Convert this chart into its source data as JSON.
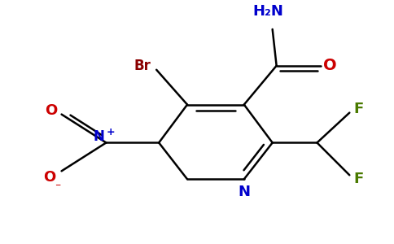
{
  "background_color": "#ffffff",
  "figsize": [
    4.84,
    3.0
  ],
  "dpi": 100,
  "lw": 1.8,
  "atom_colors": {
    "N": "#0000cc",
    "O": "#cc0000",
    "Br": "#8b0000",
    "F": "#4a7a00",
    "C": "#000000"
  }
}
